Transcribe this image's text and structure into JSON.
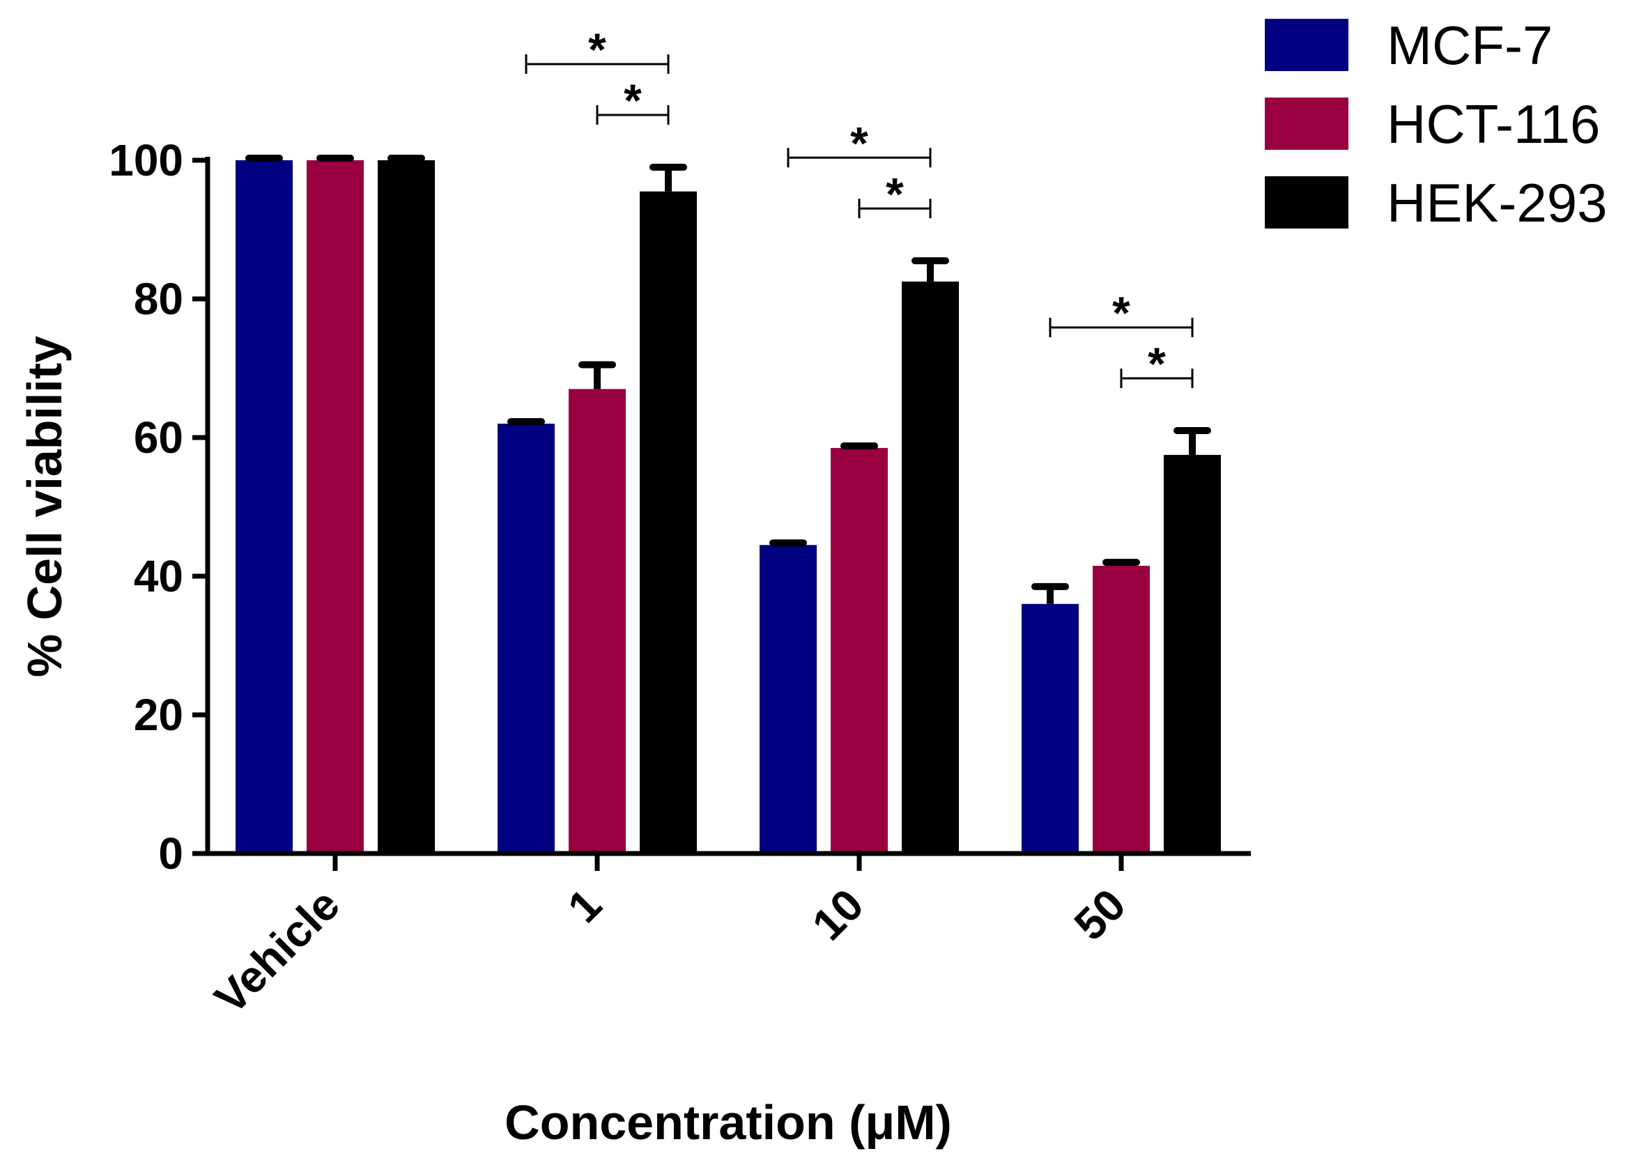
{
  "chart_data": {
    "type": "bar",
    "title": "",
    "xlabel": "Concentration (μM)",
    "ylabel": "% Cell viability",
    "ylim": [
      0,
      100
    ],
    "yticks": [
      0,
      20,
      40,
      60,
      80,
      100
    ],
    "categories": [
      "Vehicle",
      "1",
      "10",
      "50"
    ],
    "series": [
      {
        "name": "MCF-7",
        "color": "#000080",
        "values": [
          100,
          62,
          44.5,
          36
        ],
        "errors": [
          0.3,
          0.3,
          0.3,
          2.5
        ]
      },
      {
        "name": "HCT-116",
        "color": "#990040",
        "values": [
          100,
          67,
          58.5,
          41.5
        ],
        "errors": [
          0.3,
          3.5,
          0.3,
          0.5
        ]
      },
      {
        "name": "HEK-293",
        "color": "#000000",
        "values": [
          100,
          95.5,
          82.5,
          57.5
        ],
        "errors": [
          0.3,
          3.5,
          3,
          3.5
        ]
      }
    ],
    "significance": [
      {
        "category": 1,
        "from_series": 0,
        "to_series": 2,
        "level": "outer",
        "label": "*"
      },
      {
        "category": 1,
        "from_series": 1,
        "to_series": 2,
        "level": "inner",
        "label": "*"
      },
      {
        "category": 2,
        "from_series": 0,
        "to_series": 2,
        "level": "outer",
        "label": "*"
      },
      {
        "category": 2,
        "from_series": 1,
        "to_series": 2,
        "level": "inner",
        "label": "*"
      },
      {
        "category": 3,
        "from_series": 0,
        "to_series": 2,
        "level": "outer",
        "label": "*"
      },
      {
        "category": 3,
        "from_series": 1,
        "to_series": 2,
        "level": "inner",
        "label": "*"
      }
    ],
    "legend": {
      "position": "top-right"
    },
    "grid": false
  }
}
